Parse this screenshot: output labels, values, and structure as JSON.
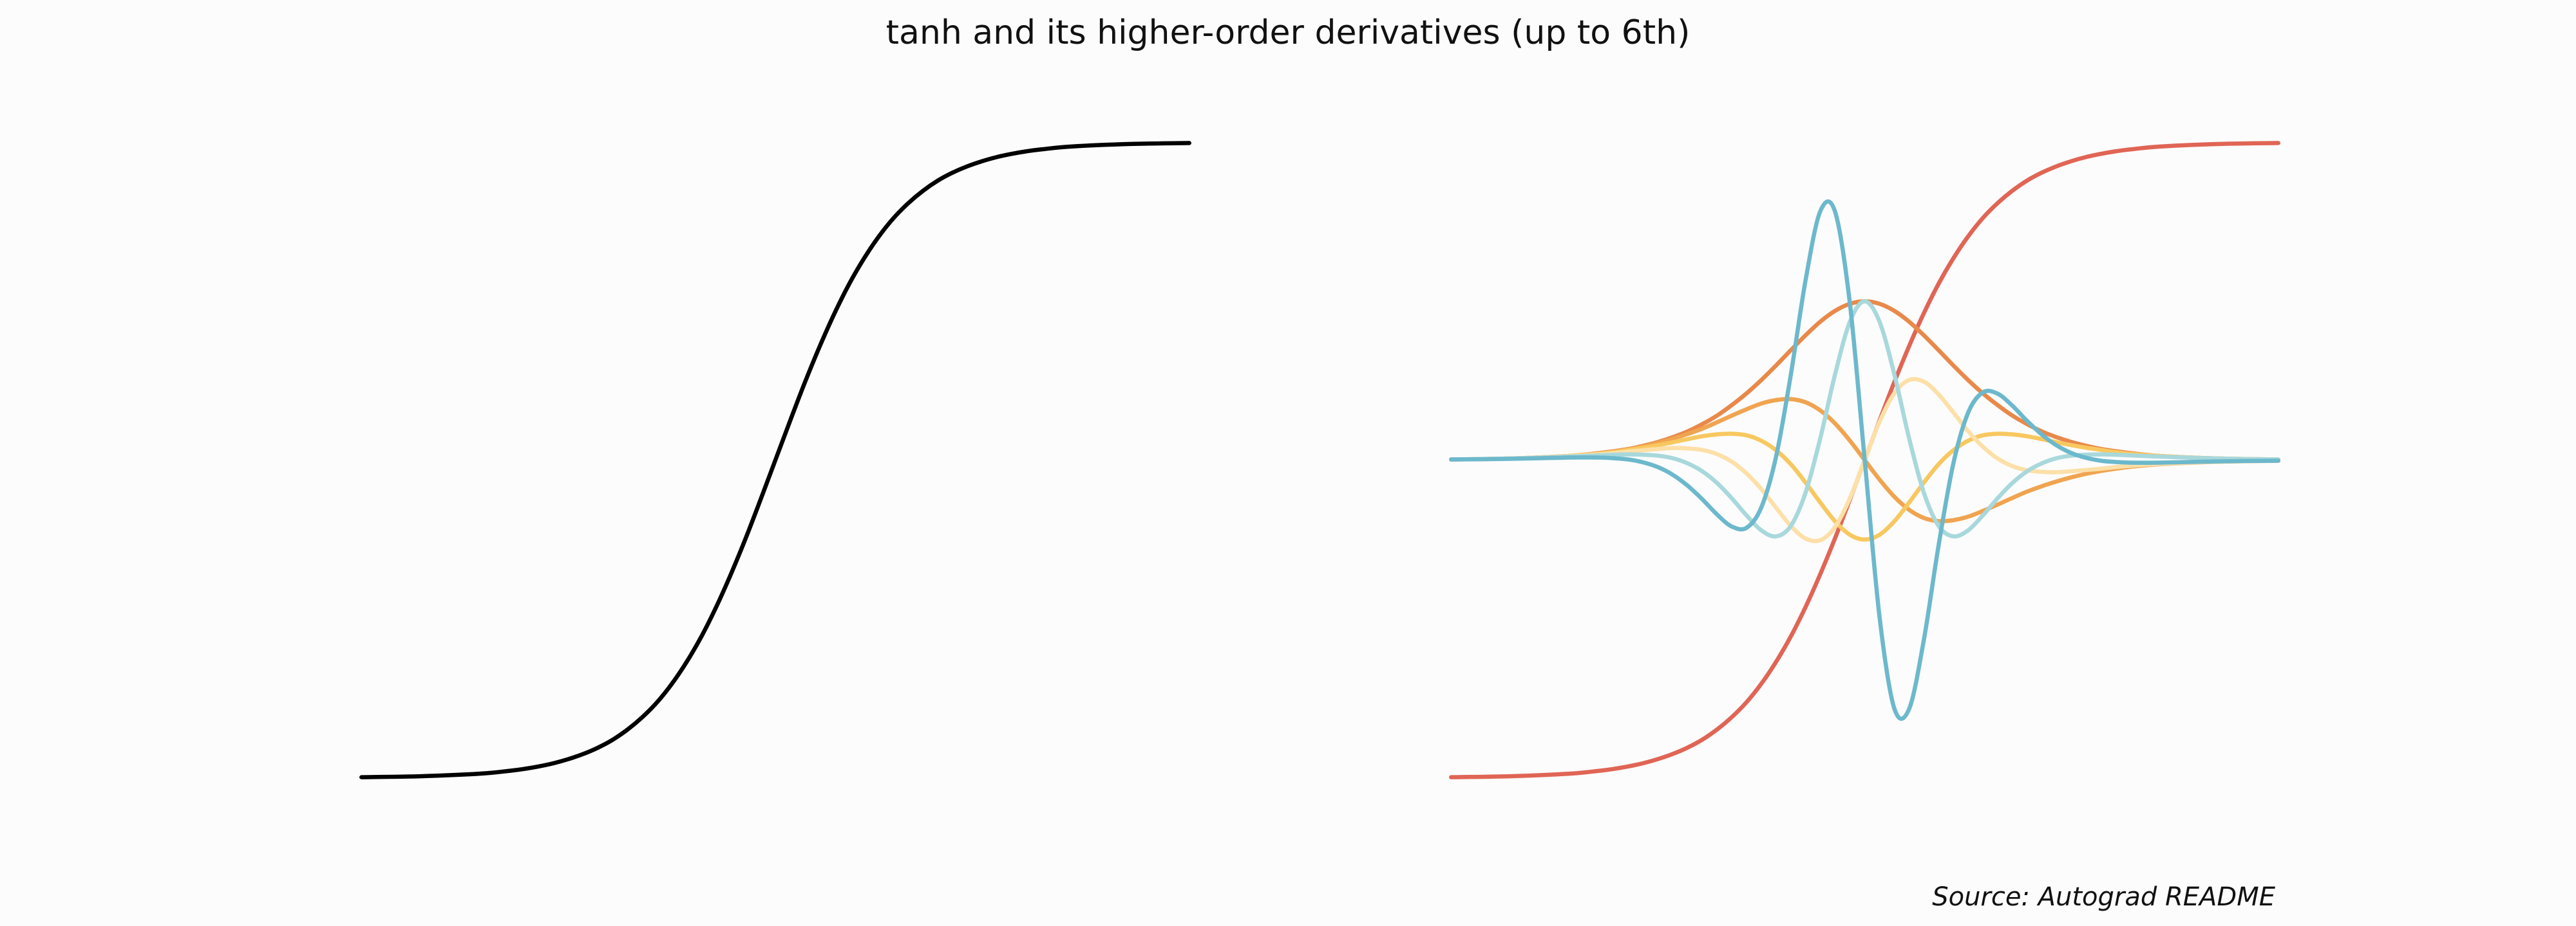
{
  "title": "tanh and its higher-order derivatives (up to 6th)",
  "source": "Source: Autograd README",
  "chart_data": [
    {
      "type": "line",
      "x": [
        -7,
        -6,
        -5,
        -4.5,
        -4.25,
        -4,
        -3.75,
        -3.5,
        -3.25,
        -3,
        -2.75,
        -2.5,
        -2.25,
        -2,
        -1.75,
        -1.5,
        -1.25,
        -1,
        -0.75,
        -0.5,
        -0.25,
        0,
        0.25,
        0.5,
        0.75,
        1,
        1.25,
        1.5,
        1.75,
        2,
        2.25,
        2.5,
        2.75,
        3,
        3.25,
        3.5,
        3.75,
        4,
        4.25,
        4.5,
        5,
        6,
        7
      ],
      "xlim": [
        -7.7,
        7.7
      ],
      "ylim": [
        -1.1,
        1.1
      ],
      "series": [
        {
          "color": "#000000",
          "values": [
            -0.998,
            -0.995,
            -0.987,
            -0.978,
            -0.972,
            -0.964,
            -0.954,
            -0.941,
            -0.925,
            -0.905,
            -0.88,
            -0.848,
            -0.809,
            -0.762,
            -0.704,
            -0.635,
            -0.555,
            -0.462,
            -0.358,
            -0.245,
            -0.124,
            0,
            0.124,
            0.245,
            0.358,
            0.462,
            0.555,
            0.635,
            0.704,
            0.762,
            0.809,
            0.848,
            0.88,
            0.905,
            0.925,
            0.941,
            0.954,
            0.964,
            0.972,
            0.978,
            0.987,
            0.995,
            0.998
          ]
        }
      ]
    },
    {
      "type": "line",
      "x": [
        -7,
        -6,
        -5,
        -4.5,
        -4.25,
        -4,
        -3.75,
        -3.5,
        -3.25,
        -3,
        -2.75,
        -2.5,
        -2.25,
        -2,
        -1.75,
        -1.5,
        -1.25,
        -1,
        -0.75,
        -0.5,
        -0.25,
        0,
        0.25,
        0.5,
        0.75,
        1,
        1.25,
        1.5,
        1.75,
        2,
        2.25,
        2.5,
        2.75,
        3,
        3.25,
        3.5,
        3.75,
        4,
        4.25,
        4.5,
        5,
        6,
        7
      ],
      "xlim": [
        -7.7,
        7.7
      ],
      "ylim": [
        -1.1,
        1.1
      ],
      "series": [
        {
          "color": "#e06555",
          "values": [
            -0.998,
            -0.995,
            -0.987,
            -0.978,
            -0.972,
            -0.964,
            -0.954,
            -0.941,
            -0.925,
            -0.905,
            -0.88,
            -0.848,
            -0.809,
            -0.762,
            -0.704,
            -0.635,
            -0.555,
            -0.462,
            -0.358,
            -0.245,
            -0.124,
            0,
            0.124,
            0.245,
            0.358,
            0.462,
            0.555,
            0.635,
            0.704,
            0.762,
            0.809,
            0.848,
            0.88,
            0.905,
            0.925,
            0.941,
            0.954,
            0.964,
            0.972,
            0.978,
            0.987,
            0.995,
            0.998
          ]
        },
        {
          "color": "#e8894a",
          "values": [
            0.002,
            0.005,
            0.013,
            0.022,
            0.028,
            0.035,
            0.045,
            0.057,
            0.072,
            0.09,
            0.113,
            0.14,
            0.173,
            0.21,
            0.252,
            0.298,
            0.346,
            0.393,
            0.436,
            0.47,
            0.492,
            0.5,
            0.492,
            0.47,
            0.436,
            0.393,
            0.346,
            0.298,
            0.252,
            0.21,
            0.173,
            0.14,
            0.113,
            0.09,
            0.072,
            0.057,
            0.045,
            0.035,
            0.028,
            0.022,
            0.013,
            0.005,
            0.002
          ]
        },
        {
          "color": "#f0a450",
          "values": [
            0.002,
            0.005,
            0.013,
            0.021,
            0.027,
            0.034,
            0.043,
            0.054,
            0.067,
            0.082,
            0.099,
            0.119,
            0.14,
            0.16,
            0.178,
            0.189,
            0.192,
            0.182,
            0.156,
            0.115,
            0.061,
            0,
            -0.061,
            -0.115,
            -0.156,
            -0.182,
            -0.192,
            -0.189,
            -0.178,
            -0.16,
            -0.14,
            -0.119,
            -0.099,
            -0.082,
            -0.067,
            -0.054,
            -0.043,
            -0.034,
            -0.027,
            -0.021,
            -0.013,
            -0.005,
            -0.002
          ]
        },
        {
          "color": "#f8c860",
          "values": [
            0.002,
            0.005,
            0.013,
            0.02,
            0.025,
            0.032,
            0.039,
            0.047,
            0.056,
            0.066,
            0.075,
            0.081,
            0.083,
            0.078,
            0.061,
            0.031,
            -0.013,
            -0.071,
            -0.134,
            -0.193,
            -0.235,
            -0.25,
            -0.235,
            -0.193,
            -0.134,
            -0.071,
            -0.013,
            0.031,
            0.061,
            0.078,
            0.083,
            0.081,
            0.075,
            0.066,
            0.056,
            0.047,
            0.039,
            0.032,
            0.025,
            0.02,
            0.013,
            0.005,
            0.002
          ]
        },
        {
          "color": "#fde0a8",
          "values": [
            0.002,
            0.005,
            0.012,
            0.018,
            0.022,
            0.027,
            0.031,
            0.035,
            0.038,
            0.037,
            0.032,
            0.019,
            -0.005,
            -0.042,
            -0.091,
            -0.15,
            -0.207,
            -0.247,
            -0.252,
            -0.21,
            -0.12,
            0,
            0.12,
            0.21,
            0.252,
            0.247,
            0.207,
            0.15,
            0.091,
            0.042,
            0.005,
            -0.019,
            -0.032,
            -0.037,
            -0.038,
            -0.035,
            -0.031,
            -0.027,
            -0.022,
            -0.018,
            -0.012,
            -0.005,
            -0.002
          ]
        },
        {
          "color": "#a8d8dc",
          "values": [
            0.002,
            0.005,
            0.011,
            0.015,
            0.017,
            0.018,
            0.017,
            0.014,
            0.006,
            -0.01,
            -0.035,
            -0.072,
            -0.12,
            -0.174,
            -0.221,
            -0.24,
            -0.207,
            -0.102,
            0.07,
            0.271,
            0.436,
            0.5,
            0.436,
            0.271,
            0.07,
            -0.102,
            -0.207,
            -0.24,
            -0.221,
            -0.174,
            -0.12,
            -0.072,
            -0.035,
            -0.01,
            0.006,
            0.014,
            0.017,
            0.018,
            0.017,
            0.015,
            0.011,
            0.005,
            0.002
          ]
        },
        {
          "color": "#6cb8cc",
          "values": [
            0.002,
            0.004,
            0.008,
            0.008,
            0.006,
            0.002,
            -0.007,
            -0.022,
            -0.046,
            -0.08,
            -0.123,
            -0.171,
            -0.209,
            -0.213,
            -0.149,
            0.011,
            0.269,
            0.567,
            0.784,
            0.781,
            0.492,
            0,
            -0.492,
            -0.781,
            -0.784,
            -0.567,
            -0.269,
            -0.011,
            0.149,
            0.213,
            0.209,
            0.171,
            0.123,
            0.08,
            0.046,
            0.022,
            0.007,
            -0.002,
            -0.006,
            -0.008,
            -0.008,
            -0.004,
            -0.002
          ]
        }
      ]
    }
  ]
}
